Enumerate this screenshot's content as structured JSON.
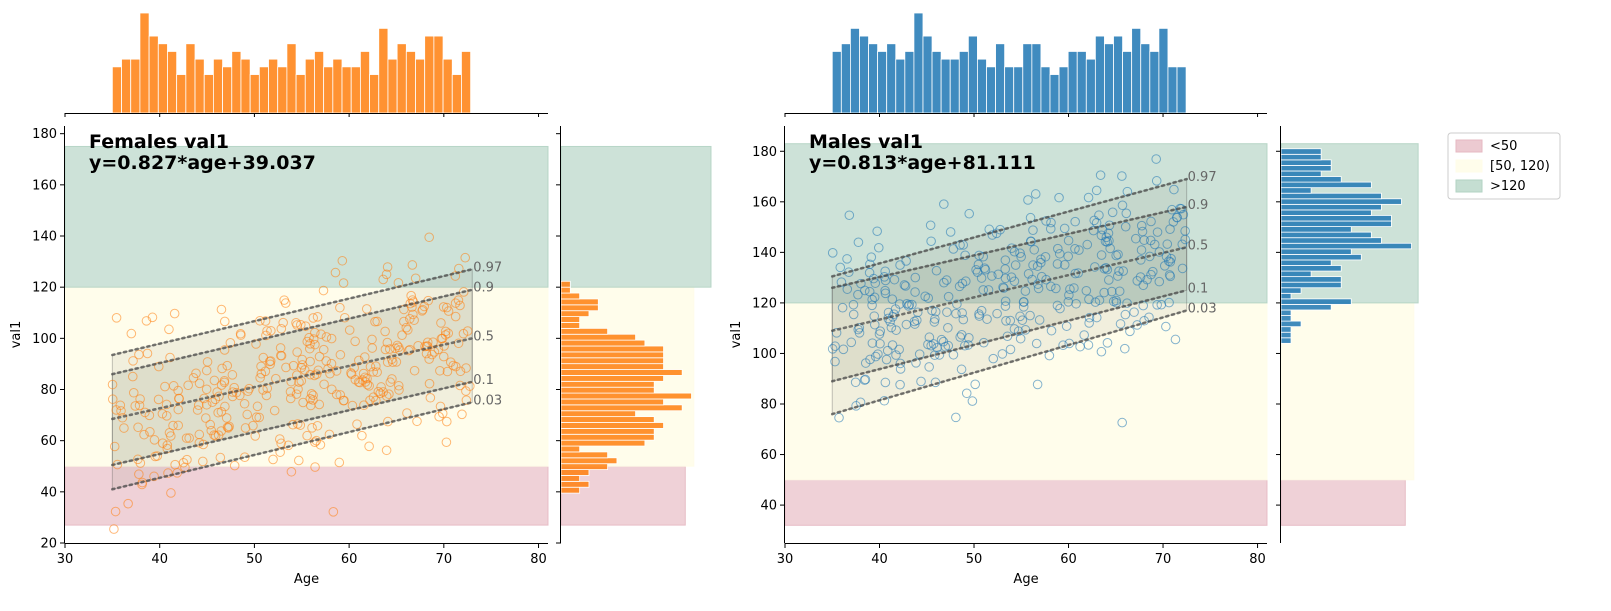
{
  "chart_data": [
    {
      "type": "scatter",
      "title_line1": "Females val1",
      "title_line2": "y=0.827*age+39.037",
      "xlabel": "Age",
      "ylabel": "val1",
      "xlim": [
        30,
        81
      ],
      "ylim": [
        20,
        183
      ],
      "xticks": [
        30,
        40,
        50,
        60,
        70,
        80
      ],
      "yticks": [
        20,
        40,
        60,
        80,
        100,
        120,
        140,
        160,
        180
      ],
      "color": "#ff7f0e",
      "bands": [
        {
          "from": 27,
          "to": 50,
          "color": "#e6b8c2",
          "x_end": 81
        },
        {
          "from": 50,
          "to": 120,
          "color": "#fffde9",
          "x_end": 81
        },
        {
          "from": 120,
          "to": 175,
          "color": "#b2d3c3",
          "x_end": 81
        }
      ],
      "margin_bands_x_end": [
        14.5,
        15.5,
        17.5
      ],
      "quantiles": [
        {
          "label": "0.97",
          "start": [
            35,
            93.5
          ],
          "end": [
            73,
            127
          ]
        },
        {
          "label": "0.9",
          "start": [
            35,
            86
          ],
          "end": [
            73,
            119
          ]
        },
        {
          "label": "0.5",
          "start": [
            35,
            68.5
          ],
          "end": [
            73,
            100
          ]
        },
        {
          "label": "0.1",
          "start": [
            35,
            50.5
          ],
          "end": [
            73,
            83
          ]
        },
        {
          "label": "0.03",
          "start": [
            35,
            41
          ],
          "end": [
            73,
            75
          ]
        }
      ],
      "shade_outer": [
        "0.97",
        "0.03"
      ],
      "shade_inner": [
        "0.9",
        "0.1"
      ],
      "scatter": {
        "n": 380,
        "x_range": [
          35,
          73
        ],
        "slope": 0.827,
        "intercept": 39.037,
        "sd": 17,
        "seed": 7
      },
      "top_hist": {
        "x_start": 35,
        "bin_width": 0.97,
        "counts": [
          6,
          7,
          7,
          13,
          10,
          9,
          8,
          5,
          9,
          7,
          5,
          7,
          6,
          8,
          7,
          5,
          6,
          7,
          6,
          9,
          5,
          7,
          8,
          6,
          7,
          6,
          6,
          8,
          5,
          11,
          7,
          9,
          8,
          7,
          10,
          10,
          7,
          5,
          8
        ]
      },
      "right_hist": {
        "y_start": 39.5,
        "bin_width": 2.3,
        "counts": [
          2,
          3,
          2,
          3,
          5,
          6,
          5,
          2,
          9,
          10,
          10,
          11,
          10,
          8,
          13,
          11,
          14,
          10,
          10,
          11,
          13,
          11,
          11,
          11,
          11,
          9,
          8,
          5,
          2,
          2,
          3,
          4,
          4,
          2,
          1,
          1
        ]
      }
    },
    {
      "type": "scatter",
      "title_line1": "Males val1",
      "title_line2": "y=0.813*age+81.111",
      "xlabel": "Age",
      "ylabel": "val1",
      "xlim": [
        30,
        81
      ],
      "ylim": [
        25,
        190
      ],
      "xticks": [
        30,
        40,
        50,
        60,
        70,
        80
      ],
      "yticks": [
        40,
        60,
        80,
        100,
        120,
        140,
        160,
        180
      ],
      "color": "#1f77b4",
      "bands": [
        {
          "from": 32,
          "to": 50,
          "color": "#e6b8c2",
          "x_end": 81
        },
        {
          "from": 50,
          "to": 120,
          "color": "#fffde9",
          "x_end": 81
        },
        {
          "from": 120,
          "to": 183,
          "color": "#b2d3c3",
          "x_end": 81
        }
      ],
      "margin_bands_x_end": [
        14.5,
        15.5,
        16
      ],
      "quantiles": [
        {
          "label": "0.97",
          "start": [
            35,
            130.5
          ],
          "end": [
            72.5,
            169
          ]
        },
        {
          "label": "0.9",
          "start": [
            35,
            126
          ],
          "end": [
            72.5,
            158
          ]
        },
        {
          "label": "0.5",
          "start": [
            35,
            109
          ],
          "end": [
            72.5,
            142
          ]
        },
        {
          "label": "0.1",
          "start": [
            35,
            89
          ],
          "end": [
            72.5,
            125
          ]
        },
        {
          "label": "0.03",
          "start": [
            35,
            76
          ],
          "end": [
            72.5,
            117
          ]
        }
      ],
      "shade_outer": [
        "0.97",
        "0.03"
      ],
      "shade_inner": [
        "0.9",
        "0.1"
      ],
      "scatter": {
        "n": 360,
        "x_range": [
          35,
          72.5
        ],
        "slope": 0.813,
        "intercept": 81.111,
        "sd": 17,
        "seed": 13
      },
      "top_hist": {
        "x_start": 35,
        "bin_width": 0.96,
        "counts": [
          8,
          9,
          11,
          10,
          9,
          8,
          9,
          7,
          8,
          13,
          10,
          8,
          7,
          7,
          8,
          10,
          7,
          6,
          9,
          6,
          6,
          9,
          9,
          6,
          5,
          6,
          8,
          8,
          7,
          10,
          9,
          10,
          8,
          11,
          9,
          8,
          11,
          6,
          6
        ]
      },
      "right_hist": {
        "y_start": 104,
        "bin_width": 2.2,
        "counts": [
          1,
          1,
          1,
          2,
          1,
          1,
          5,
          7,
          1,
          2,
          6,
          6,
          3,
          6,
          5,
          8,
          7,
          13,
          10,
          9,
          7,
          11,
          11,
          9,
          10,
          12,
          10,
          3,
          9,
          6,
          4,
          5,
          5,
          4,
          4
        ]
      }
    }
  ],
  "legend": {
    "items": [
      {
        "label": "<50",
        "color": "#e6b8c2"
      },
      {
        "label": "[50, 120)",
        "color": "#fffde9"
      },
      {
        "label": ">120",
        "color": "#b2d3c3"
      }
    ]
  }
}
